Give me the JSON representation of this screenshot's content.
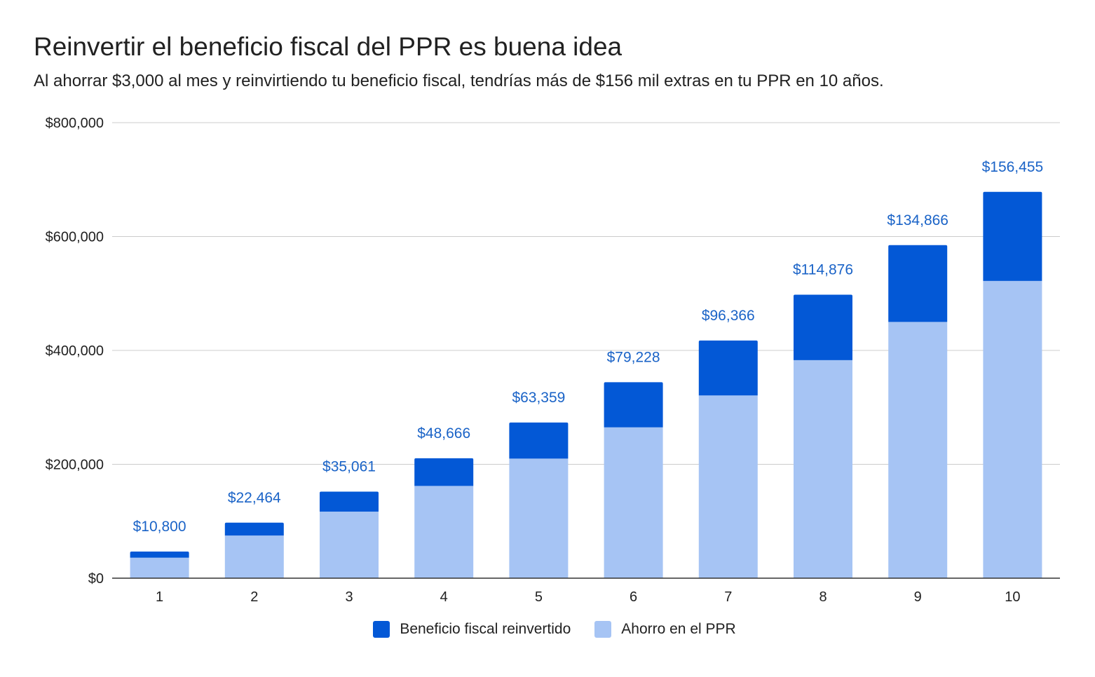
{
  "chart_data": {
    "type": "bar",
    "stacked": true,
    "title": "Reinvertir el beneficio fiscal del PPR es buena idea",
    "subtitle": "Al ahorrar $3,000 al mes y reinvirtiendo tu beneficio fiscal, tendrías más de $156 mil extras en tu PPR en 10 años.",
    "xlabel": "",
    "ylabel": "",
    "categories": [
      "1",
      "2",
      "3",
      "4",
      "5",
      "6",
      "7",
      "8",
      "9",
      "10"
    ],
    "ylim": [
      0,
      800000
    ],
    "yticks": [
      0,
      200000,
      400000,
      600000,
      800000
    ],
    "ytick_labels": [
      "$0",
      "$200,000",
      "$400,000",
      "$600,000",
      "$800,000"
    ],
    "grid": true,
    "legend_position": "bottom",
    "series": [
      {
        "name": "Ahorro en el PPR",
        "color": "#a6c4f4",
        "values": [
          36000,
          75000,
          117000,
          162000,
          210000,
          265000,
          321000,
          383000,
          450000,
          522000
        ]
      },
      {
        "name": "Beneficio fiscal reinvertido",
        "color": "#0358d6",
        "values": [
          10800,
          22464,
          35061,
          48666,
          63359,
          79228,
          96366,
          114876,
          134866,
          156455
        ]
      }
    ],
    "data_labels": [
      "$10,800",
      "$22,464",
      "$35,061",
      "$48,666",
      "$63,359",
      "$79,228",
      "$96,366",
      "$114,876",
      "$134,866",
      "$156,455"
    ],
    "data_label_color": "#1a63c7"
  },
  "legend": {
    "items": [
      {
        "label": "Beneficio fiscal reinvertido",
        "color": "#0358d6"
      },
      {
        "label": "Ahorro en el PPR",
        "color": "#a6c4f4"
      }
    ]
  }
}
